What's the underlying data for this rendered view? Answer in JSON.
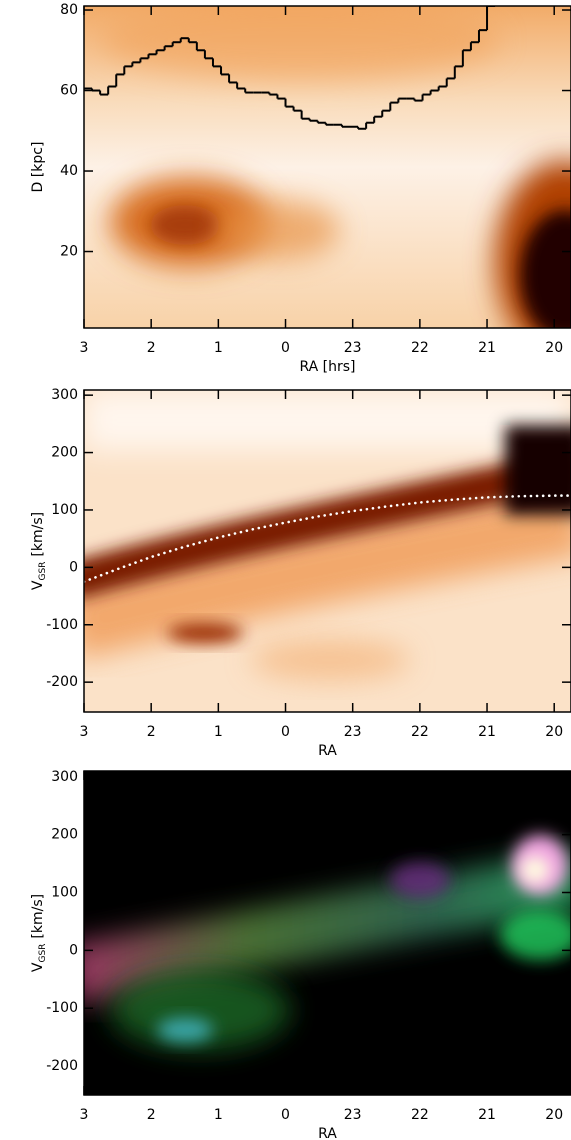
{
  "chart_data": [
    {
      "type": "line",
      "xlabel": "RA [hrs]",
      "ylabel": "D [kpc]",
      "xlim": [
        27,
        19.75
      ],
      "ylim": [
        1,
        81
      ],
      "xticks": [
        {
          "value": 27,
          "label": "3"
        },
        {
          "value": 26,
          "label": "2"
        },
        {
          "value": 25,
          "label": "1"
        },
        {
          "value": 24,
          "label": "0"
        },
        23,
        22,
        21,
        20
      ],
      "yticks": [
        20,
        40,
        60,
        80
      ],
      "series": [
        {
          "color": "#000000",
          "step": true,
          "bins": [
            27,
            26.88,
            26.76,
            26.64,
            26.52,
            26.4,
            26.28,
            26.16,
            26.04,
            25.92,
            25.8,
            25.68,
            25.56,
            25.44,
            25.32,
            25.2,
            25.08,
            24.96,
            24.84,
            24.72,
            24.6,
            24.48,
            24.36,
            24.24,
            24.12,
            24.0,
            23.88,
            23.76,
            23.64,
            23.52,
            23.4,
            23.28,
            23.16,
            23.04,
            22.92,
            22.8,
            22.68,
            22.56,
            22.44,
            22.32,
            22.2,
            22.08,
            21.96,
            21.84,
            21.72,
            21.6,
            21.48,
            21.36,
            21.24,
            21.12,
            21.0,
            20.88
          ],
          "values": [
            60.5,
            60,
            59,
            61,
            64,
            66,
            67,
            68,
            69,
            70,
            71,
            72,
            73,
            72,
            70,
            68,
            66,
            64,
            62,
            60.5,
            59.5,
            59.5,
            59.5,
            59,
            58,
            56,
            55,
            53,
            52.5,
            52,
            51.5,
            51.5,
            51,
            51,
            50.5,
            52,
            53.5,
            55,
            57,
            58,
            58,
            57.5,
            59,
            60,
            61,
            63,
            66,
            70,
            72,
            75,
            81
          ]
        }
      ]
    },
    {
      "type": "line",
      "xlabel": "RA",
      "ylabel_parts": [
        "V",
        "GSR",
        "[km/s]"
      ],
      "xlim": [
        27,
        19.75
      ],
      "ylim": [
        -252,
        309
      ],
      "xticks": [
        {
          "value": 27,
          "label": "3"
        },
        {
          "value": 26,
          "label": "2"
        },
        {
          "value": 25,
          "label": "1"
        },
        {
          "value": 24,
          "label": "0"
        },
        23,
        22,
        21,
        20
      ],
      "yticks": [
        -200,
        -100,
        0,
        100,
        200,
        300
      ],
      "series": [
        {
          "color": "#ffffff",
          "dotted": true,
          "x": [
            27,
            26.5,
            26,
            25.5,
            25,
            24.5,
            24,
            23.5,
            23,
            22.5,
            22,
            21.5,
            21,
            20.5,
            20,
            19.75
          ],
          "values": [
            -25,
            -3,
            18,
            36,
            52,
            66,
            78,
            89,
            98,
            106,
            113,
            118,
            122,
            124,
            125,
            125
          ]
        }
      ]
    },
    {
      "type": "image",
      "xlabel": "RA",
      "ylabel_parts": [
        "V",
        "GSR",
        "[km/s]"
      ],
      "xlim": [
        27,
        19.75
      ],
      "ylim": [
        -250,
        310
      ],
      "xticks": [
        {
          "value": 27,
          "label": "3"
        },
        {
          "value": 26,
          "label": "2"
        },
        {
          "value": 25,
          "label": "1"
        },
        {
          "value": 24,
          "label": "0"
        },
        23,
        22,
        21,
        20
      ],
      "yticks": [
        -200,
        -100,
        0,
        100,
        200,
        300
      ]
    }
  ]
}
